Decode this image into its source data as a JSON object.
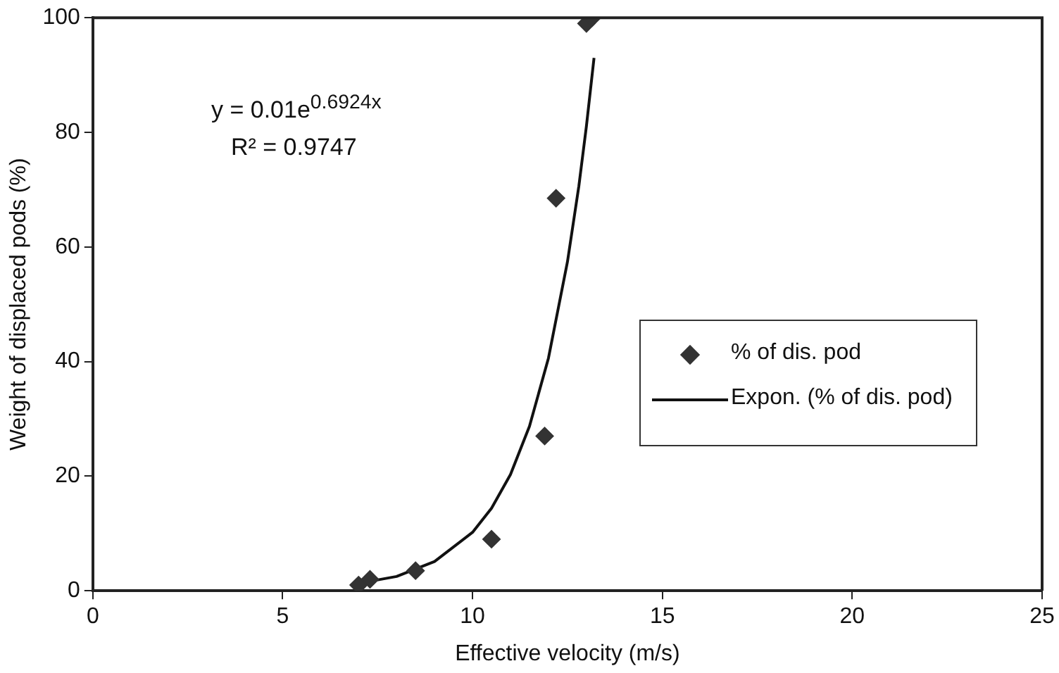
{
  "chart_data": {
    "type": "scatter",
    "xlabel": "Effective velocity (m/s)",
    "ylabel": "Weight of displaced pods (%)",
    "xlim": [
      0,
      25
    ],
    "xticks": [
      0,
      5,
      10,
      15,
      20,
      25
    ],
    "ylim": [
      0,
      100
    ],
    "yticks": [
      0,
      20,
      40,
      60,
      80,
      100
    ],
    "grid": false,
    "legend": "right",
    "marker": "diamond",
    "series": [
      {
        "name": "% of dis. pod",
        "color": "#333333",
        "x": [
          7.0,
          7.3,
          8.5,
          10.5,
          11.9,
          12.2,
          13.0,
          13.15
        ],
        "values": [
          1,
          2,
          3.5,
          9,
          27,
          68.5,
          99,
          100
        ]
      },
      {
        "name": "Expon. (% of dis. pod)",
        "type": "line",
        "color": "#111111",
        "marker": "none",
        "line_style": "solid",
        "x": [
          7,
          8,
          9,
          10,
          10.5,
          11,
          11.5,
          12,
          12.5,
          12.8,
          13,
          13.2
        ],
        "values": [
          1.3,
          2.5,
          5.1,
          10.2,
          14.4,
          20.3,
          28.7,
          40.6,
          57.4,
          70.6,
          81.1,
          93.0
        ]
      }
    ],
    "annotations": [
      "y = 0.01e$^{0.6924x}$",
      "R² = 0.9747"
    ]
  }
}
